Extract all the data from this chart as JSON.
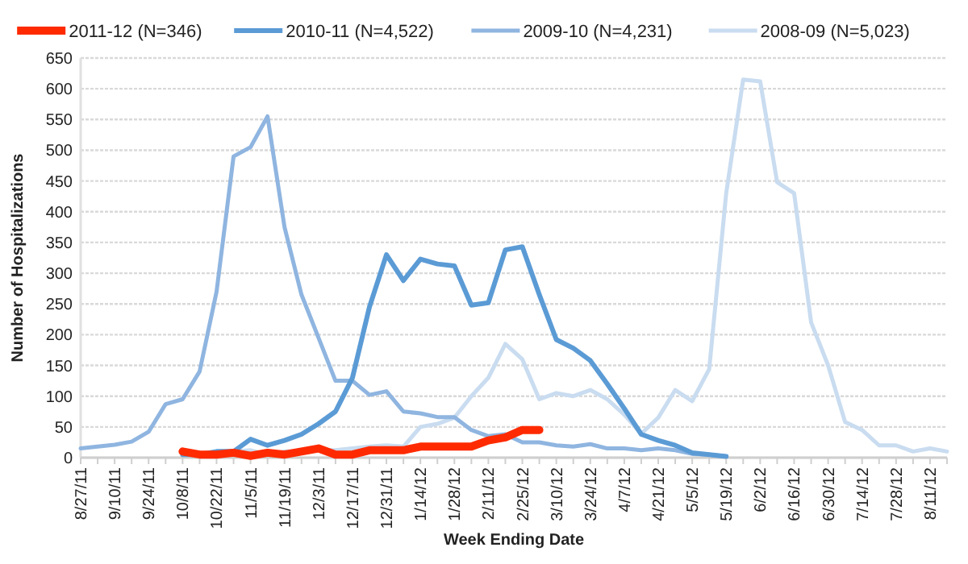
{
  "chart_data": {
    "type": "line",
    "xlabel": "Week Ending Date",
    "ylabel": "Number of Hospitalizations",
    "categories": [
      "8/27/11",
      null,
      "9/10/11",
      null,
      "9/24/11",
      null,
      "10/8/11",
      null,
      "10/22/11",
      null,
      "11/5/11",
      null,
      "11/19/11",
      null,
      "12/3/11",
      null,
      "12/17/11",
      null,
      "12/31/11",
      null,
      "1/14/12",
      null,
      "1/28/12",
      null,
      "2/11/12",
      null,
      "2/25/12",
      null,
      "3/10/12",
      null,
      "3/24/12",
      null,
      "4/7/12",
      null,
      "4/21/12",
      null,
      "5/5/12",
      null,
      "5/19/12",
      null,
      "6/2/12",
      null,
      "6/16/12",
      null,
      "6/30/12",
      null,
      "7/14/12",
      null,
      "7/28/12",
      null,
      "8/11/12",
      null
    ],
    "ylim": [
      0,
      650
    ],
    "yticks": [
      0,
      50,
      100,
      150,
      200,
      250,
      300,
      350,
      400,
      450,
      500,
      550,
      600,
      650
    ],
    "grid": "y",
    "legend": "top",
    "marker": "none",
    "series": [
      {
        "name": "2011-12 (N=346)",
        "color": "#ff2a00",
        "values": [
          null,
          null,
          null,
          null,
          null,
          null,
          10,
          5,
          5,
          8,
          3,
          8,
          5,
          10,
          15,
          5,
          5,
          12,
          12,
          12,
          18,
          18,
          18,
          18,
          28,
          33,
          45,
          45,
          null,
          null,
          null,
          null,
          null,
          null,
          null,
          null,
          null,
          null,
          null,
          null,
          null,
          null,
          null,
          null,
          null,
          null,
          null,
          null,
          null,
          null,
          null,
          null
        ]
      },
      {
        "name": "2010-11 (N=4,522)",
        "color": "#5b9bd5",
        "values": [
          null,
          null,
          null,
          null,
          null,
          null,
          5,
          5,
          10,
          10,
          30,
          20,
          28,
          38,
          55,
          75,
          130,
          245,
          330,
          288,
          323,
          315,
          312,
          248,
          252,
          338,
          343,
          265,
          192,
          178,
          158,
          120,
          80,
          38,
          28,
          20,
          8,
          5,
          2,
          null,
          null,
          null,
          null,
          null,
          null,
          null,
          null,
          null,
          null,
          null,
          null,
          null
        ]
      },
      {
        "name": "2009-10 (N=4,231)",
        "color": "#8fb5e0",
        "values": [
          15,
          18,
          21,
          26,
          42,
          87,
          95,
          140,
          270,
          490,
          505,
          555,
          375,
          265,
          195,
          125,
          125,
          102,
          108,
          75,
          72,
          66,
          66,
          45,
          35,
          38,
          25,
          25,
          20,
          18,
          22,
          15,
          15,
          12,
          15,
          12,
          6,
          5,
          2,
          null,
          null,
          null,
          null,
          null,
          null,
          null,
          null,
          null,
          null,
          null,
          null,
          null
        ]
      },
      {
        "name": "2008-09 (N=5,023)",
        "color": "#c9dcf0",
        "values": [
          null,
          null,
          null,
          null,
          null,
          null,
          5,
          5,
          8,
          10,
          12,
          5,
          10,
          10,
          12,
          12,
          15,
          18,
          20,
          18,
          50,
          55,
          65,
          100,
          130,
          185,
          160,
          95,
          105,
          100,
          110,
          95,
          70,
          39,
          65,
          110,
          92,
          144,
          430,
          615,
          612,
          448,
          430,
          220,
          150,
          58,
          45,
          20,
          20,
          10,
          15,
          10
        ]
      }
    ]
  }
}
